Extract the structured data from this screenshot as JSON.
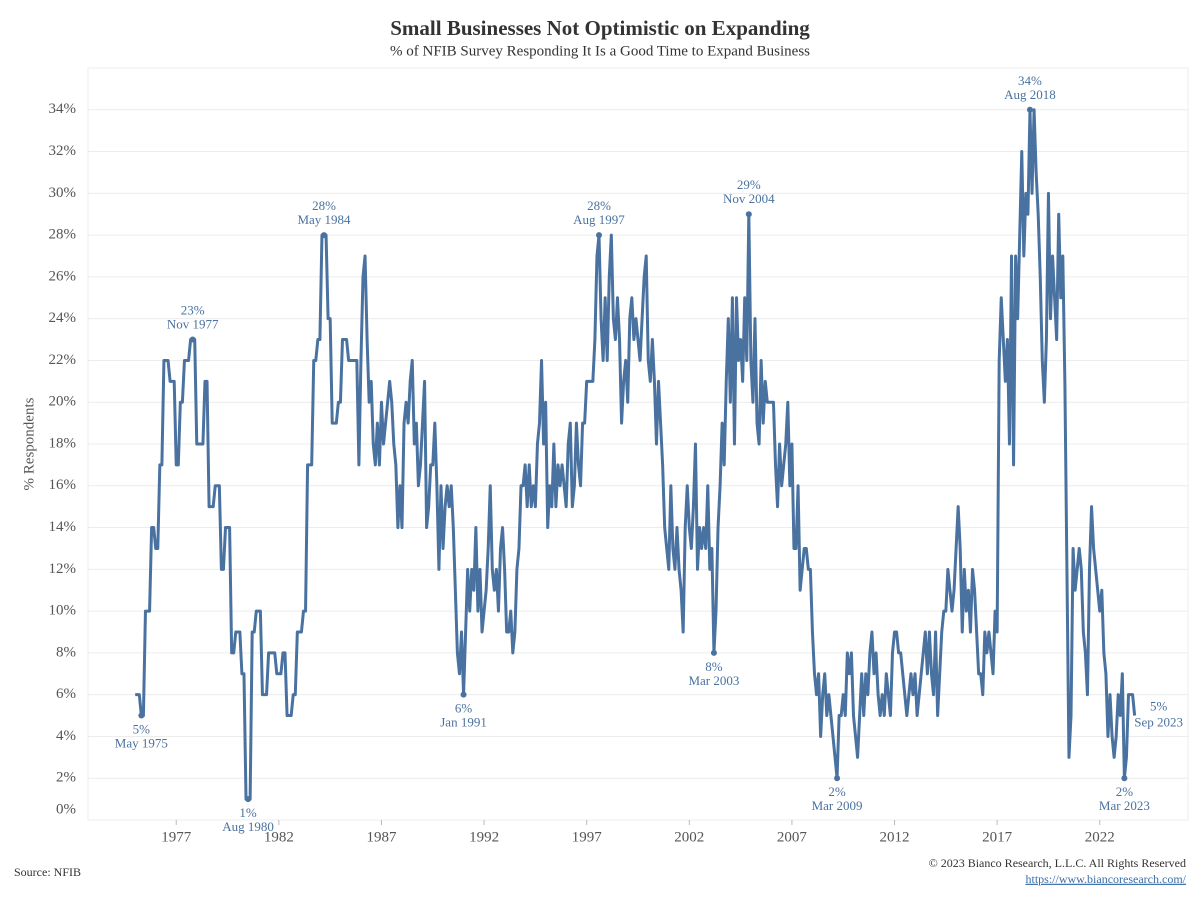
{
  "chart_data": {
    "type": "line",
    "title": "Small Businesses Not Optimistic on Expanding",
    "subtitle": "% of NFIB Survey Responding It Is a Good Time to Expand Business",
    "y_label": "% Respondents",
    "source": "Source: NFIB",
    "copyright": "© 2023 Bianco Research, L.L.C. All Rights Reserved",
    "url": "https://www.biancoresearch.com/",
    "color": "#4a72a0",
    "grid": true,
    "xlim": [
      1972.7,
      2026.3
    ],
    "xticks": [
      1977,
      1982,
      1987,
      1992,
      1997,
      2002,
      2007,
      2012,
      2017,
      2022
    ],
    "ylim": [
      0,
      36
    ],
    "yticks": [
      {
        "value": 0,
        "label": "0%"
      },
      {
        "value": 2,
        "label": "2%"
      },
      {
        "value": 4,
        "label": "4%"
      },
      {
        "value": 6,
        "label": "6%"
      },
      {
        "value": 8,
        "label": "8%"
      },
      {
        "value": 10,
        "label": "10%"
      },
      {
        "value": 12,
        "label": "12%"
      },
      {
        "value": 14,
        "label": "14%"
      },
      {
        "value": 16,
        "label": "16%"
      },
      {
        "value": 18,
        "label": "18%"
      },
      {
        "value": 20,
        "label": "20%"
      },
      {
        "value": 22,
        "label": "22%"
      },
      {
        "value": 24,
        "label": "24%"
      },
      {
        "value": 26,
        "label": "26%"
      },
      {
        "value": 28,
        "label": "28%"
      },
      {
        "value": 30,
        "label": "30%"
      },
      {
        "value": 32,
        "label": "32%"
      },
      {
        "value": 34,
        "label": "34%"
      }
    ],
    "x": [
      1975,
      1975.1,
      1975.2,
      1975.3,
      1975.4,
      1975.5,
      1975.6,
      1975.7,
      1975.8,
      1975.9,
      1976,
      1976.1,
      1976.2,
      1976.3,
      1976.4,
      1976.5,
      1976.6,
      1976.7,
      1976.8,
      1976.9,
      1977,
      1977.1,
      1977.2,
      1977.3,
      1977.4,
      1977.5,
      1977.6,
      1977.7,
      1977.8,
      1977.9,
      1978,
      1978.1,
      1978.2,
      1978.3,
      1978.4,
      1978.5,
      1978.6,
      1978.7,
      1978.8,
      1978.9,
      1979,
      1979.1,
      1979.2,
      1979.3,
      1979.4,
      1979.5,
      1979.6,
      1979.7,
      1979.8,
      1979.9,
      1980,
      1980.1,
      1980.2,
      1980.3,
      1980.4,
      1980.5,
      1980.6,
      1980.7,
      1980.8,
      1980.9,
      1981,
      1981.1,
      1981.2,
      1981.3,
      1981.4,
      1981.5,
      1981.6,
      1981.7,
      1981.8,
      1981.9,
      1982,
      1982.1,
      1982.2,
      1982.3,
      1982.4,
      1982.5,
      1982.6,
      1982.7,
      1982.8,
      1982.9,
      1983,
      1983.1,
      1983.2,
      1983.3,
      1983.4,
      1983.5,
      1983.6,
      1983.7,
      1983.8,
      1983.9,
      1984,
      1984.1,
      1984.2,
      1984.3,
      1984.4,
      1984.5,
      1984.6,
      1984.7,
      1984.8,
      1984.9,
      1985,
      1985.1,
      1985.2,
      1985.3,
      1985.4,
      1985.5,
      1985.6,
      1985.7,
      1985.8,
      1985.9,
      1986,
      1986.1,
      1986.2,
      1986.3,
      1986.4,
      1986.5,
      1986.6,
      1986.7,
      1986.8,
      1986.9,
      1987,
      1987.1,
      1987.2,
      1987.3,
      1987.4,
      1987.5,
      1987.6,
      1987.7,
      1987.8,
      1987.9,
      1988,
      1988.1,
      1988.2,
      1988.3,
      1988.4,
      1988.5,
      1988.6,
      1988.7,
      1988.8,
      1988.9,
      1989,
      1989.1,
      1989.2,
      1989.3,
      1989.4,
      1989.5,
      1989.6,
      1989.7,
      1989.8,
      1989.9,
      1990,
      1990.1,
      1990.2,
      1990.3,
      1990.4,
      1990.5,
      1990.6,
      1990.7,
      1990.8,
      1990.9,
      1991,
      1991.1,
      1991.2,
      1991.3,
      1991.4,
      1991.5,
      1991.6,
      1991.7,
      1991.8,
      1991.9,
      1992,
      1992.1,
      1992.2,
      1992.3,
      1992.4,
      1992.5,
      1992.6,
      1992.7,
      1992.8,
      1992.9,
      1993,
      1993.1,
      1993.2,
      1993.3,
      1993.4,
      1993.5,
      1993.6,
      1993.7,
      1993.8,
      1993.9,
      1994,
      1994.1,
      1994.2,
      1994.3,
      1994.4,
      1994.5,
      1994.6,
      1994.7,
      1994.8,
      1994.9,
      1995,
      1995.1,
      1995.2,
      1995.3,
      1995.4,
      1995.5,
      1995.6,
      1995.7,
      1995.8,
      1995.9,
      1996,
      1996.1,
      1996.2,
      1996.3,
      1996.4,
      1996.5,
      1996.6,
      1996.7,
      1996.8,
      1996.9,
      1997,
      1997.1,
      1997.2,
      1997.3,
      1997.4,
      1997.5,
      1997.6,
      1997.7,
      1997.8,
      1997.9,
      1998,
      1998.1,
      1998.2,
      1998.3,
      1998.4,
      1998.5,
      1998.6,
      1998.7,
      1998.8,
      1998.9,
      1999,
      1999.1,
      1999.2,
      1999.3,
      1999.4,
      1999.5,
      1999.6,
      1999.7,
      1999.8,
      1999.9,
      2000,
      2000.1,
      2000.2,
      2000.3,
      2000.4,
      2000.5,
      2000.6,
      2000.7,
      2000.8,
      2000.9,
      2001,
      2001.1,
      2001.2,
      2001.3,
      2001.4,
      2001.5,
      2001.6,
      2001.7,
      2001.8,
      2001.9,
      2002,
      2002.1,
      2002.2,
      2002.3,
      2002.4,
      2002.5,
      2002.6,
      2002.7,
      2002.8,
      2002.9,
      2003,
      2003.1,
      2003.2,
      2003.3,
      2003.4,
      2003.5,
      2003.6,
      2003.7,
      2003.8,
      2003.9,
      2004,
      2004.1,
      2004.2,
      2004.3,
      2004.4,
      2004.5,
      2004.6,
      2004.7,
      2004.8,
      2004.9,
      2005,
      2005.1,
      2005.2,
      2005.3,
      2005.4,
      2005.5,
      2005.6,
      2005.7,
      2005.8,
      2005.9,
      2006,
      2006.1,
      2006.2,
      2006.3,
      2006.4,
      2006.5,
      2006.6,
      2006.7,
      2006.8,
      2006.9,
      2007,
      2007.1,
      2007.2,
      2007.3,
      2007.4,
      2007.5,
      2007.6,
      2007.7,
      2007.8,
      2007.9,
      2008,
      2008.1,
      2008.2,
      2008.3,
      2008.4,
      2008.5,
      2008.6,
      2008.7,
      2008.8,
      2008.9,
      2009,
      2009.1,
      2009.2,
      2009.3,
      2009.4,
      2009.5,
      2009.6,
      2009.7,
      2009.8,
      2009.9,
      2010,
      2010.1,
      2010.2,
      2010.3,
      2010.4,
      2010.5,
      2010.6,
      2010.7,
      2010.8,
      2010.9,
      2011,
      2011.1,
      2011.2,
      2011.3,
      2011.4,
      2011.5,
      2011.6,
      2011.7,
      2011.8,
      2011.9,
      2012,
      2012.1,
      2012.2,
      2012.3,
      2012.4,
      2012.5,
      2012.6,
      2012.7,
      2012.8,
      2012.9,
      2013,
      2013.1,
      2013.2,
      2013.3,
      2013.4,
      2013.5,
      2013.6,
      2013.7,
      2013.8,
      2013.9,
      2014,
      2014.1,
      2014.2,
      2014.3,
      2014.4,
      2014.5,
      2014.6,
      2014.7,
      2014.8,
      2014.9,
      2015,
      2015.1,
      2015.2,
      2015.3,
      2015.4,
      2015.5,
      2015.6,
      2015.7,
      2015.8,
      2015.9,
      2016,
      2016.1,
      2016.2,
      2016.3,
      2016.4,
      2016.5,
      2016.6,
      2016.7,
      2016.8,
      2016.9,
      2017,
      2017.1,
      2017.2,
      2017.3,
      2017.4,
      2017.5,
      2017.6,
      2017.7,
      2017.8,
      2017.9,
      2018,
      2018.1,
      2018.2,
      2018.3,
      2018.4,
      2018.5,
      2018.6,
      2018.7,
      2018.8,
      2018.9,
      2019,
      2019.1,
      2019.2,
      2019.3,
      2019.4,
      2019.5,
      2019.6,
      2019.7,
      2019.8,
      2019.9,
      2020,
      2020.1,
      2020.2,
      2020.3,
      2020.4,
      2020.5,
      2020.6,
      2020.7,
      2020.8,
      2020.9,
      2021,
      2021.1,
      2021.2,
      2021.3,
      2021.4,
      2021.5,
      2021.6,
      2021.7,
      2021.8,
      2021.9,
      2022,
      2022.1,
      2022.2,
      2022.3,
      2022.4,
      2022.5,
      2022.6,
      2022.7,
      2022.8,
      2022.9,
      2023,
      2023.1,
      2023.2,
      2023.3,
      2023.4,
      2023.5,
      2023.6,
      2023.7
    ],
    "values": [
      6,
      6,
      6,
      5,
      5,
      10,
      10,
      10,
      14,
      14,
      13,
      13,
      17,
      17,
      22,
      22,
      22,
      21,
      21,
      21,
      17,
      17,
      20,
      20,
      22,
      22,
      22,
      23,
      23,
      23,
      18,
      18,
      18,
      18,
      21,
      21,
      15,
      15,
      15,
      16,
      16,
      16,
      12,
      12,
      14,
      14,
      14,
      8,
      8,
      9,
      9,
      9,
      7,
      7,
      1,
      1,
      1,
      9,
      9,
      10,
      10,
      10,
      6,
      6,
      6,
      8,
      8,
      8,
      8,
      7,
      7,
      7,
      8,
      8,
      5,
      5,
      5,
      6,
      6,
      9,
      9,
      9,
      10,
      10,
      17,
      17,
      17,
      22,
      22,
      23,
      23,
      28,
      28,
      28,
      24,
      24,
      19,
      19,
      19,
      20,
      20,
      23,
      23,
      23,
      22,
      22,
      22,
      22,
      22,
      17,
      22,
      26,
      27,
      23,
      20,
      21,
      18,
      17,
      19,
      17,
      20,
      18,
      19,
      20,
      21,
      20,
      18,
      17,
      14,
      16,
      14,
      19,
      20,
      19,
      21,
      22,
      18,
      19,
      16,
      17,
      19,
      21,
      14,
      15,
      17,
      17,
      19,
      16,
      12,
      16,
      13,
      15,
      16,
      15,
      16,
      14,
      11,
      8,
      7,
      9,
      6,
      9,
      12,
      10,
      12,
      11,
      14,
      10,
      12,
      9,
      10,
      11,
      13,
      16,
      12,
      11,
      12,
      10,
      13,
      14,
      12,
      9,
      9,
      10,
      8,
      9,
      12,
      13,
      16,
      16,
      17,
      15,
      17,
      15,
      16,
      15,
      18,
      19,
      22,
      18,
      20,
      14,
      16,
      15,
      18,
      15,
      17,
      16,
      17,
      16,
      15,
      18,
      19,
      15,
      16,
      19,
      17,
      16,
      19,
      19,
      21,
      21,
      21,
      21,
      23,
      27,
      28,
      24,
      22,
      25,
      22,
      26,
      28,
      24,
      23,
      25,
      23,
      19,
      21,
      22,
      20,
      24,
      25,
      23,
      24,
      23,
      22,
      24,
      26,
      27,
      22,
      21,
      23,
      21,
      18,
      21,
      19,
      17,
      14,
      13,
      12,
      16,
      13,
      12,
      14,
      12,
      11,
      9,
      14,
      16,
      14,
      13,
      15,
      18,
      12,
      14,
      13,
      14,
      13,
      16,
      12,
      13,
      8,
      10,
      14,
      16,
      19,
      17,
      21,
      24,
      20,
      25,
      18,
      25,
      22,
      23,
      21,
      25,
      22,
      29,
      22,
      20,
      24,
      19,
      18,
      22,
      19,
      21,
      20,
      20,
      20,
      20,
      17,
      15,
      18,
      16,
      17,
      18,
      20,
      16,
      18,
      13,
      13,
      16,
      11,
      12,
      13,
      13,
      12,
      12,
      9,
      7,
      6,
      7,
      4,
      6,
      7,
      5,
      6,
      5,
      4,
      3,
      2,
      5,
      5,
      6,
      5,
      8,
      7,
      8,
      5,
      4,
      3,
      5,
      7,
      5,
      7,
      6,
      8,
      9,
      7,
      8,
      6,
      5,
      6,
      5,
      7,
      6,
      5,
      8,
      9,
      9,
      8,
      8,
      7,
      6,
      5,
      6,
      7,
      6,
      7,
      5,
      6,
      7,
      8,
      9,
      7,
      9,
      7,
      6,
      9,
      5,
      7,
      9,
      10,
      10,
      12,
      11,
      10,
      11,
      13,
      15,
      13,
      9,
      12,
      10,
      11,
      9,
      12,
      11,
      9,
      7,
      7,
      6,
      9,
      8,
      9,
      8,
      7,
      10,
      9,
      22,
      25,
      23,
      21,
      23,
      18,
      27,
      17,
      27,
      24,
      28,
      32,
      27,
      30,
      29,
      34,
      30,
      34,
      31,
      29,
      26,
      22,
      20,
      23,
      30,
      24,
      27,
      25,
      23,
      29,
      25,
      27,
      21,
      12,
      3,
      5,
      13,
      11,
      12,
      13,
      12,
      9,
      8,
      6,
      12,
      15,
      13,
      12,
      11,
      10,
      11,
      8,
      7,
      4,
      6,
      4,
      3,
      4,
      6,
      5,
      7,
      2,
      3,
      6,
      6,
      6,
      5
    ],
    "annotations": [
      {
        "x": 1975.3,
        "value": 5,
        "label": "5%",
        "date": "May 1975"
      },
      {
        "x": 1977.8,
        "value": 23,
        "label": "23%",
        "date": "Nov 1977"
      },
      {
        "x": 1980.5,
        "value": 1,
        "label": "1%",
        "date": "Aug 1980"
      },
      {
        "x": 1984.2,
        "value": 28,
        "label": "28%",
        "date": "May 1984"
      },
      {
        "x": 1991,
        "value": 6,
        "label": "6%",
        "date": "Jan 1991"
      },
      {
        "x": 1997.6,
        "value": 28,
        "label": "28%",
        "date": "Aug 1997"
      },
      {
        "x": 2003.2,
        "value": 8,
        "label": "8%",
        "date": "Mar 2003"
      },
      {
        "x": 2004.9,
        "value": 29,
        "label": "29%",
        "date": "Nov 2004"
      },
      {
        "x": 2009.2,
        "value": 2,
        "label": "2%",
        "date": "Mar 2009"
      },
      {
        "x": 2018.6,
        "value": 34,
        "label": "34%",
        "date": "Aug 2018"
      },
      {
        "x": 2023.2,
        "value": 2,
        "label": "2%",
        "date": "Mar 2023"
      },
      {
        "x": 2023.7,
        "value": 5,
        "label": "5%",
        "date": "Sep 2023"
      }
    ]
  }
}
